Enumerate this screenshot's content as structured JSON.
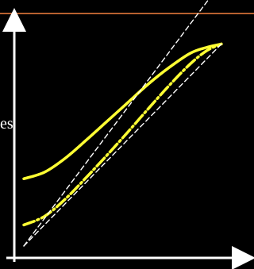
{
  "page": {
    "partial_label": "es"
  },
  "chart_data": {
    "type": "line",
    "title": "",
    "xlabel": "",
    "ylabel": "",
    "grid": false,
    "legend": "none",
    "xlim": [
      0,
      100
    ],
    "ylim": [
      0,
      100
    ],
    "background": "#000000",
    "accent_band_color": "#b7612f",
    "axis_color": "#ffffff",
    "series": [
      {
        "style": "solid",
        "color": "#ffff33",
        "x": [
          0,
          10,
          20,
          30,
          40,
          50,
          60,
          70,
          80,
          88,
          95
        ],
        "y": [
          32.6,
          35.8,
          42.6,
          51.3,
          60.4,
          69.5,
          78.6,
          86.6,
          93.4,
          96.3,
          97.9
        ]
      },
      {
        "style": "dash-dot",
        "color": "#ffff33",
        "x": [
          0,
          10,
          20,
          30,
          40,
          50,
          60,
          70,
          80,
          88,
          95
        ],
        "y": [
          10.2,
          14.4,
          22.8,
          33.2,
          44.0,
          55.2,
          66.7,
          77.9,
          88.2,
          94.7,
          97.9
        ]
      },
      {
        "style": "dashed",
        "color": "#ffffff",
        "x": [
          0,
          95
        ],
        "y": [
          0,
          97.9
        ]
      },
      {
        "style": "dashed",
        "color": "#ffffff",
        "x": [
          0,
          91.7
        ],
        "y": [
          0,
          123.3
        ]
      }
    ]
  }
}
